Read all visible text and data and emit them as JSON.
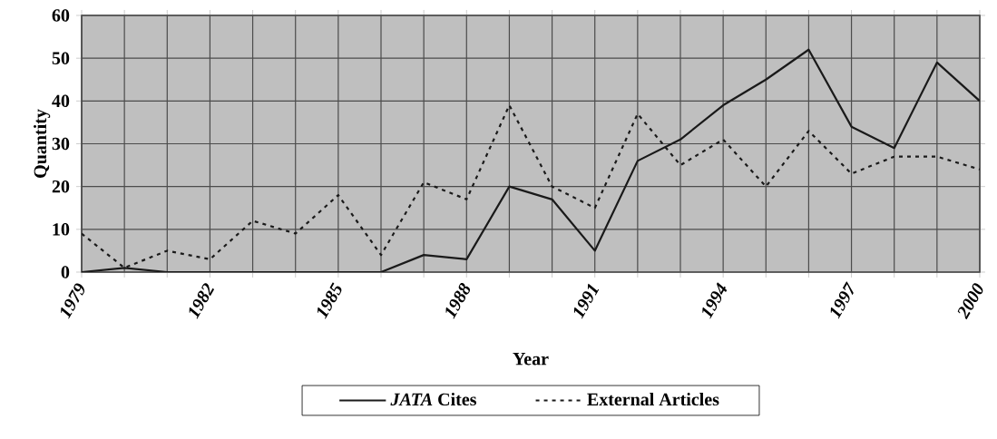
{
  "chart_data": {
    "type": "line",
    "xlabel": "Year",
    "ylabel": "Quantity",
    "x": [
      1979,
      1980,
      1981,
      1982,
      1983,
      1984,
      1985,
      1986,
      1987,
      1988,
      1989,
      1990,
      1991,
      1992,
      1993,
      1994,
      1995,
      1996,
      1997,
      1998,
      1999,
      2000
    ],
    "series": [
      {
        "name": "*JATA* Cites",
        "color": "#1a1a1a",
        "line_style": "solid",
        "values": [
          0,
          1,
          0,
          0,
          0,
          0,
          0,
          0,
          4,
          3,
          20,
          17,
          5,
          26,
          31,
          39,
          45,
          52,
          34,
          29,
          49,
          40
        ]
      },
      {
        "name": "External Articles",
        "color": "#1a1a1a",
        "line_style": "dotted",
        "values": [
          9,
          1,
          5,
          3,
          12,
          9,
          18,
          4,
          21,
          17,
          39,
          20,
          15,
          37,
          25,
          31,
          20,
          33,
          23,
          27,
          27,
          24
        ]
      }
    ],
    "xlim": [
      1979,
      2000
    ],
    "ylim": [
      0,
      60
    ],
    "xticks": [
      1979,
      {
        "value": 1980,
        "label": null
      },
      {
        "value": 1981,
        "label": null
      },
      1982,
      {
        "value": 1983,
        "label": null
      },
      {
        "value": 1984,
        "label": null
      },
      1985,
      {
        "value": 1986,
        "label": null
      },
      {
        "value": 1987,
        "label": null
      },
      1988,
      {
        "value": 1989,
        "label": null
      },
      {
        "value": 1990,
        "label": null
      },
      1991,
      {
        "value": 1992,
        "label": null
      },
      {
        "value": 1993,
        "label": null
      },
      1994,
      {
        "value": 1995,
        "label": null
      },
      {
        "value": 1996,
        "label": null
      },
      1997,
      {
        "value": 1998,
        "label": null
      },
      {
        "value": 1999,
        "label": null
      },
      2000
    ],
    "yticks": [
      0,
      10,
      20,
      30,
      40,
      50,
      60
    ],
    "grid": true,
    "legend": "bottom",
    "marker": "none"
  }
}
